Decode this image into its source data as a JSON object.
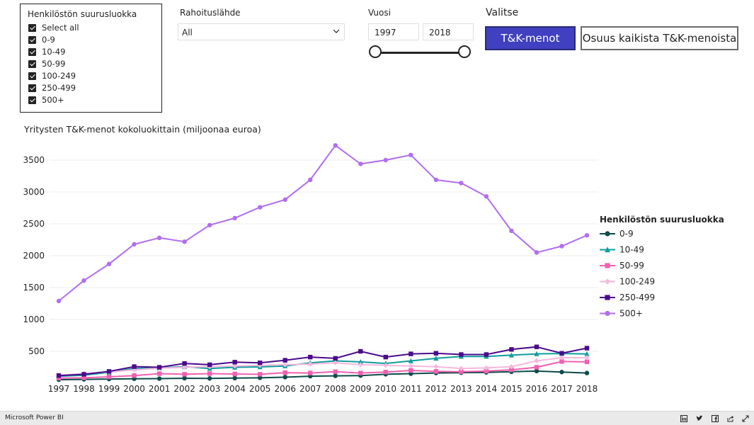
{
  "slicer_size": {
    "title": "Henkilöstön suurusluokka",
    "items": [
      "Select all",
      "0-9",
      "10-49",
      "50-99",
      "100-249",
      "250-499",
      "500+"
    ]
  },
  "rahoitus": {
    "title": "Rahoituslähde",
    "value": "All",
    "chevron_icon": "chevron-down-icon"
  },
  "vuosi": {
    "title": "Vuosi",
    "start": "1997",
    "end": "2018"
  },
  "valitse": {
    "title": "Valitse",
    "btn_tk": "T&K-menot",
    "btn_osuus": "Osuus kaikista T&K-menoista",
    "active_color": "#4040c0"
  },
  "chart_data": {
    "type": "line",
    "title": "Yritysten T&K-menot kokoluokittain (miljoonaa euroa)",
    "xlabel": "",
    "ylabel": "",
    "ylim": [
      0,
      3800
    ],
    "yticks": [
      500,
      1000,
      1500,
      2000,
      2500,
      3000,
      3500
    ],
    "x": [
      "1997",
      "1998",
      "1999",
      "2000",
      "2001",
      "2002",
      "2003",
      "2004",
      "2005",
      "2006",
      "2007",
      "2008",
      "2009",
      "2010",
      "2011",
      "2012",
      "2013",
      "2014",
      "2015",
      "2016",
      "2017",
      "2018"
    ],
    "grid": true,
    "legend": {
      "title": "Henkilöstön suurusluokka",
      "placement": "right"
    },
    "series": [
      {
        "name": "0-9",
        "color": "#0f4a4a",
        "marker": "circle",
        "values": [
          55,
          60,
          65,
          70,
          72,
          78,
          75,
          80,
          85,
          95,
          110,
          115,
          120,
          140,
          150,
          160,
          165,
          170,
          180,
          190,
          175,
          160
        ]
      },
      {
        "name": "10-49",
        "color": "#0f9d9d",
        "marker": "triangle",
        "values": [
          110,
          125,
          170,
          230,
          240,
          260,
          230,
          250,
          255,
          270,
          320,
          350,
          335,
          310,
          350,
          390,
          420,
          420,
          440,
          460,
          465,
          460
        ]
      },
      {
        "name": "50-99",
        "color": "#f060b0",
        "marker": "square",
        "values": [
          80,
          85,
          100,
          120,
          150,
          140,
          150,
          145,
          140,
          165,
          160,
          180,
          160,
          175,
          200,
          185,
          180,
          190,
          210,
          250,
          340,
          335
        ]
      },
      {
        "name": "100-249",
        "color": "#f7b8dd",
        "marker": "diamond",
        "values": [
          125,
          150,
          175,
          210,
          235,
          250,
          260,
          270,
          280,
          290,
          300,
          320,
          290,
          280,
          270,
          260,
          230,
          240,
          260,
          350,
          400,
          400
        ]
      },
      {
        "name": "250-499",
        "color": "#4b0a8c",
        "marker": "square",
        "values": [
          120,
          140,
          185,
          260,
          250,
          310,
          290,
          330,
          320,
          360,
          410,
          390,
          500,
          410,
          460,
          470,
          450,
          450,
          530,
          570,
          470,
          550
        ]
      },
      {
        "name": "500+",
        "color": "#b06ef0",
        "marker": "circle",
        "values": [
          1290,
          1610,
          1870,
          2180,
          2280,
          2220,
          2480,
          2590,
          2760,
          2880,
          3190,
          3730,
          3440,
          3500,
          3580,
          3190,
          3140,
          2930,
          2390,
          2050,
          2150,
          2320
        ]
      }
    ]
  },
  "footer": {
    "brand": "Microsoft Power BI",
    "icons": [
      "linkedin-icon",
      "twitter-icon",
      "facebook-icon",
      "share-icon",
      "fullscreen-icon"
    ]
  }
}
